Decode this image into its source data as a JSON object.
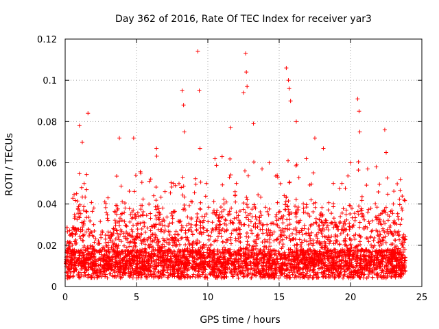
{
  "chart_data": {
    "type": "scatter",
    "title": "Day 362 of 2016, Rate Of TEC Index for receiver yar3",
    "xlabel": "GPS time / hours",
    "ylabel": "ROTI / TECUs",
    "xlim": [
      0,
      25
    ],
    "ylim": [
      0,
      0.12
    ],
    "grid": true,
    "xticks": [
      0,
      5,
      10,
      15,
      20,
      25
    ],
    "xtick_labels": [
      "0",
      "5",
      "10",
      "15",
      "20",
      "25"
    ],
    "yticks": [
      0,
      0.02,
      0.04,
      0.06,
      0.08,
      0.1,
      0.12
    ],
    "ytick_labels": [
      "0",
      "0.02",
      "0.04",
      "0.06",
      "0.08",
      "0.1",
      "0.12"
    ],
    "marker": "+",
    "color": "#ff0000",
    "series": [
      {
        "name": "ROTI",
        "description": "dense band of ROTI samples, mostly 0.005–0.04 TECU/min over 0–24 h",
        "x": [
          0.1,
          0.3,
          0.5,
          0.8,
          1.0,
          1.2,
          1.5,
          1.6,
          2.0,
          2.5,
          3.0,
          3.8,
          4.2,
          4.8,
          5.3,
          5.9,
          6.4,
          7.0,
          7.6,
          8.2,
          8.3,
          8.35,
          8.9,
          9.3,
          9.4,
          9.45,
          9.9,
          10.5,
          11.0,
          11.6,
          12.0,
          12.5,
          12.65,
          12.7,
          12.75,
          13.2,
          13.8,
          14.3,
          14.9,
          15.5,
          15.65,
          15.7,
          15.8,
          16.2,
          16.9,
          17.5,
          18.1,
          18.8,
          19.4,
          20.0,
          20.5,
          20.6,
          20.65,
          21.2,
          21.8,
          22.4,
          22.5,
          23.0,
          23.5,
          23.8
        ],
        "y": [
          0.012,
          0.018,
          0.02,
          0.045,
          0.078,
          0.07,
          0.047,
          0.084,
          0.03,
          0.025,
          0.043,
          0.072,
          0.038,
          0.072,
          0.055,
          0.051,
          0.067,
          0.046,
          0.05,
          0.095,
          0.088,
          0.075,
          0.041,
          0.114,
          0.095,
          0.067,
          0.05,
          0.062,
          0.063,
          0.077,
          0.05,
          0.094,
          0.113,
          0.104,
          0.097,
          0.079,
          0.057,
          0.06,
          0.053,
          0.106,
          0.1,
          0.096,
          0.09,
          0.08,
          0.062,
          0.072,
          0.067,
          0.05,
          0.05,
          0.06,
          0.091,
          0.085,
          0.075,
          0.057,
          0.058,
          0.076,
          0.065,
          0.04,
          0.052,
          0.014
        ]
      }
    ]
  }
}
